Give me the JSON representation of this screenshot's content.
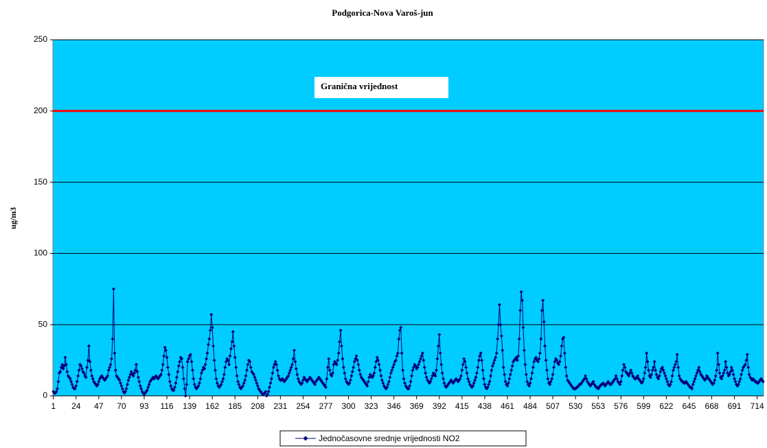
{
  "chart_data": {
    "type": "line",
    "title": "Podgorica-Nova Varoš-jun",
    "y_label": "ug/m3",
    "plot_background": "#00ccff",
    "grid": true,
    "ylim": [
      0,
      250
    ],
    "yticks": [
      0,
      50,
      100,
      150,
      200,
      250
    ],
    "threshold": {
      "value": 200,
      "color": "#ff0000",
      "label": "Granična vrijednost"
    },
    "categories": [
      1,
      null,
      null,
      null,
      null,
      null,
      null,
      null,
      null,
      null,
      null,
      null,
      null,
      null,
      null,
      null,
      null,
      null,
      null,
      null,
      null,
      null,
      null,
      24,
      null,
      null,
      null,
      null,
      null,
      null,
      null,
      null,
      null,
      null,
      null,
      null,
      null,
      null,
      null,
      null,
      null,
      null,
      null,
      null,
      null,
      null,
      47,
      null,
      null,
      null,
      null,
      null,
      null,
      null,
      null,
      null,
      null,
      null,
      null,
      null,
      null,
      null,
      null,
      null,
      null,
      null,
      null,
      null,
      null,
      70,
      null,
      null,
      null,
      null,
      null,
      null,
      null,
      null,
      null,
      null,
      null,
      null,
      null,
      null,
      null,
      null,
      null,
      null,
      null,
      null,
      null,
      null,
      93,
      null,
      null,
      null,
      null,
      null,
      null,
      null,
      null,
      null,
      null,
      null,
      null,
      null,
      null,
      null,
      null,
      null,
      null,
      null,
      null,
      null,
      null,
      116,
      null,
      null,
      null,
      null,
      null,
      null,
      null,
      null,
      null,
      null,
      null,
      null,
      null,
      null,
      null,
      null,
      null,
      null,
      null,
      null,
      null,
      null,
      139,
      null,
      null,
      null,
      null,
      null,
      null,
      null,
      null,
      null,
      null,
      null,
      null,
      null,
      null,
      null,
      null,
      null,
      null,
      null,
      null,
      null,
      null,
      162,
      null,
      null,
      null,
      null,
      null,
      null,
      null,
      null,
      null,
      null,
      null,
      null,
      null,
      null,
      null,
      null,
      null,
      null,
      null,
      null,
      null,
      null,
      185,
      null,
      null,
      null,
      null,
      null,
      null,
      null,
      null,
      null,
      null,
      null,
      null,
      null,
      null,
      null,
      null,
      null,
      null,
      null,
      null,
      null,
      null,
      208,
      null,
      null,
      null,
      null,
      null,
      null,
      null,
      null,
      null,
      null,
      null,
      null,
      null,
      null,
      null,
      null,
      null,
      null,
      null,
      null,
      null,
      null,
      231,
      null,
      null,
      null,
      null,
      null,
      null,
      null,
      null,
      null,
      null,
      null,
      null,
      null,
      null,
      null,
      null,
      null,
      null,
      null,
      null,
      null,
      null,
      254,
      null,
      null,
      null,
      null,
      null,
      null,
      null,
      null,
      null,
      null,
      null,
      null,
      null,
      null,
      null,
      null,
      null,
      null,
      null,
      null,
      null,
      null,
      277,
      null,
      null,
      null,
      null,
      null,
      null,
      null,
      null,
      null,
      null,
      null,
      null,
      null,
      null,
      null,
      null,
      null,
      null,
      null,
      null,
      null,
      null,
      300,
      null,
      null,
      null,
      null,
      null,
      null,
      null,
      null,
      null,
      null,
      null,
      null,
      null,
      null,
      null,
      null,
      null,
      null,
      null,
      null,
      null,
      null,
      323,
      null,
      null,
      null,
      null,
      null,
      null,
      null,
      null,
      null,
      null,
      null,
      null,
      null,
      null,
      null,
      null,
      null,
      null,
      null,
      null,
      null,
      null,
      346,
      null,
      null,
      null,
      null,
      null,
      null,
      null,
      null,
      null,
      null,
      null,
      null,
      null,
      null,
      null,
      null,
      null,
      null,
      null,
      null,
      null,
      null,
      369,
      null,
      null,
      null,
      null,
      null,
      null,
      null,
      null,
      null,
      null,
      null,
      null,
      null,
      null,
      null,
      null,
      null,
      null,
      null,
      null,
      null,
      null,
      392,
      null,
      null,
      null,
      null,
      null,
      null,
      null,
      null,
      null,
      null,
      null,
      null,
      null,
      null,
      null,
      null,
      null,
      null,
      null,
      null,
      null,
      null,
      415,
      null,
      null,
      null,
      null,
      null,
      null,
      null,
      null,
      null,
      null,
      null,
      null,
      null,
      null,
      null,
      null,
      null,
      null,
      null,
      null,
      null,
      null,
      438,
      null,
      null,
      null,
      null,
      null,
      null,
      null,
      null,
      null,
      null,
      null,
      null,
      null,
      null,
      null,
      null,
      null,
      null,
      null,
      null,
      null,
      null,
      461,
      null,
      null,
      null,
      null,
      null,
      null,
      null,
      null,
      null,
      null,
      null,
      null,
      null,
      null,
      null,
      null,
      null,
      null,
      null,
      null,
      null,
      null,
      484,
      null,
      null,
      null,
      null,
      null,
      null,
      null,
      null,
      null,
      null,
      null,
      null,
      null,
      null,
      null,
      null,
      null,
      null,
      null,
      null,
      null,
      null,
      507,
      null,
      null,
      null,
      null,
      null,
      null,
      null,
      null,
      null,
      null,
      null,
      null,
      null,
      null,
      null,
      null,
      null,
      null,
      null,
      null,
      null,
      null,
      530,
      null,
      null,
      null,
      null,
      null,
      null,
      null,
      null,
      null,
      null,
      null,
      null,
      null,
      null,
      null,
      null,
      null,
      null,
      null,
      null,
      null,
      null,
      553,
      null,
      null,
      null,
      null,
      null,
      null,
      null,
      null,
      null,
      null,
      null,
      null,
      null,
      null,
      null,
      null,
      null,
      null,
      null,
      null,
      null,
      null,
      576,
      null,
      null,
      null,
      null,
      null,
      null,
      null,
      null,
      null,
      null,
      null,
      null,
      null,
      null,
      null,
      null,
      null,
      null,
      null,
      null,
      null,
      null,
      599,
      null,
      null,
      null,
      null,
      null,
      null,
      null,
      null,
      null,
      null,
      null,
      null,
      null,
      null,
      null,
      null,
      null,
      null,
      null,
      null,
      null,
      null,
      622,
      null,
      null,
      null,
      null,
      null,
      null,
      null,
      null,
      null,
      null,
      null,
      null,
      null,
      null,
      null,
      null,
      null,
      null,
      null,
      null,
      null,
      null,
      645,
      null,
      null,
      null,
      null,
      null,
      null,
      null,
      null,
      null,
      null,
      null,
      null,
      null,
      null,
      null,
      null,
      null,
      null,
      null,
      null,
      null,
      null,
      668,
      null,
      null,
      null,
      null,
      null,
      null,
      null,
      null,
      null,
      null,
      null,
      null,
      null,
      null,
      null,
      null,
      null,
      null,
      null,
      null,
      null,
      null,
      691,
      null,
      null,
      null,
      null,
      null,
      null,
      null,
      null,
      null,
      null,
      null,
      null,
      null,
      null,
      null,
      null,
      null,
      null,
      null,
      null,
      null,
      null,
      714,
      null,
      null,
      null,
      null,
      null,
      null
    ],
    "series": [
      {
        "name": "Jednočasovne srednje vrijednosti NO2",
        "color": "#000080",
        "values": [
          3,
          2,
          2,
          3,
          5,
          10,
          16,
          17,
          20,
          22,
          19,
          21,
          27,
          22,
          17,
          14,
          13,
          12,
          10,
          8,
          6,
          5,
          5,
          7,
          10,
          14,
          18,
          22,
          21,
          19,
          17,
          16,
          14,
          13,
          20,
          25,
          35,
          24,
          18,
          14,
          12,
          10,
          9,
          8,
          7,
          8,
          10,
          12,
          13,
          14,
          13,
          12,
          11,
          12,
          13,
          14,
          18,
          20,
          22,
          26,
          40,
          75,
          30,
          18,
          14,
          13,
          12,
          11,
          9,
          7,
          5,
          3,
          2,
          3,
          5,
          8,
          11,
          13,
          15,
          17,
          15,
          14,
          16,
          18,
          22,
          17,
          13,
          10,
          7,
          5,
          3,
          2,
          1,
          2,
          3,
          4,
          6,
          8,
          10,
          11,
          12,
          13,
          12,
          13,
          14,
          13,
          12,
          13,
          14,
          15,
          18,
          22,
          28,
          34,
          32,
          27,
          20,
          15,
          10,
          7,
          5,
          4,
          4,
          6,
          9,
          13,
          17,
          21,
          24,
          27,
          26,
          20,
          12,
          5,
          0,
          8,
          24,
          26,
          28,
          29,
          24,
          18,
          12,
          8,
          6,
          5,
          6,
          7,
          9,
          12,
          16,
          18,
          20,
          19,
          22,
          26,
          30,
          36,
          40,
          46,
          57,
          48,
          35,
          25,
          18,
          12,
          9,
          7,
          6,
          7,
          8,
          10,
          12,
          15,
          20,
          24,
          26,
          25,
          22,
          28,
          33,
          38,
          45,
          35,
          27,
          20,
          14,
          10,
          8,
          6,
          5,
          6,
          7,
          9,
          11,
          14,
          18,
          22,
          25,
          24,
          20,
          17,
          16,
          15,
          13,
          11,
          9,
          7,
          5,
          4,
          3,
          2,
          1,
          1,
          2,
          3,
          0,
          1,
          3,
          6,
          9,
          12,
          16,
          20,
          22,
          24,
          22,
          18,
          14,
          12,
          11,
          11,
          12,
          11,
          10,
          11,
          12,
          13,
          14,
          16,
          18,
          20,
          22,
          26,
          32,
          24,
          19,
          15,
          12,
          10,
          9,
          8,
          9,
          11,
          13,
          12,
          11,
          10,
          11,
          12,
          13,
          12,
          11,
          10,
          9,
          8,
          10,
          11,
          12,
          13,
          12,
          11,
          10,
          9,
          8,
          7,
          6,
          12,
          20,
          26,
          18,
          15,
          14,
          16,
          22,
          24,
          23,
          22,
          25,
          30,
          38,
          46,
          35,
          26,
          20,
          16,
          12,
          10,
          9,
          8,
          9,
          11,
          14,
          17,
          20,
          24,
          26,
          28,
          25,
          22,
          18,
          15,
          13,
          12,
          11,
          10,
          9,
          8,
          7,
          10,
          13,
          15,
          14,
          13,
          14,
          16,
          20,
          24,
          27,
          25,
          22,
          18,
          14,
          11,
          9,
          7,
          6,
          5,
          6,
          8,
          10,
          13,
          16,
          18,
          20,
          22,
          24,
          25,
          28,
          30,
          40,
          46,
          48,
          30,
          18,
          12,
          9,
          7,
          6,
          5,
          5,
          7,
          10,
          14,
          18,
          20,
          22,
          21,
          19,
          20,
          22,
          24,
          26,
          28,
          30,
          25,
          20,
          16,
          13,
          11,
          10,
          9,
          10,
          12,
          14,
          16,
          15,
          14,
          18,
          26,
          35,
          43,
          30,
          22,
          16,
          12,
          9,
          7,
          6,
          7,
          8,
          9,
          10,
          11,
          10,
          9,
          10,
          11,
          12,
          11,
          10,
          11,
          12,
          14,
          18,
          22,
          26,
          24,
          20,
          16,
          12,
          10,
          8,
          7,
          6,
          7,
          9,
          11,
          13,
          16,
          20,
          25,
          28,
          30,
          25,
          18,
          12,
          8,
          6,
          5,
          6,
          8,
          10,
          14,
          18,
          21,
          23,
          25,
          27,
          30,
          40,
          50,
          64,
          50,
          42,
          32,
          20,
          15,
          10,
          8,
          7,
          9,
          12,
          15,
          18,
          21,
          24,
          25,
          26,
          27,
          25,
          28,
          40,
          60,
          73,
          67,
          48,
          32,
          22,
          15,
          10,
          8,
          7,
          9,
          12,
          16,
          20,
          24,
          26,
          27,
          25,
          24,
          26,
          30,
          40,
          60,
          67,
          52,
          35,
          25,
          18,
          12,
          9,
          8,
          10,
          12,
          15,
          20,
          24,
          26,
          25,
          23,
          22,
          24,
          28,
          35,
          40,
          41,
          30,
          20,
          14,
          11,
          10,
          9,
          8,
          7,
          6,
          5,
          5,
          5,
          6,
          6,
          7,
          8,
          8,
          9,
          10,
          11,
          12,
          14,
          12,
          10,
          9,
          8,
          7,
          8,
          9,
          10,
          8,
          7,
          6,
          6,
          5,
          6,
          7,
          8,
          8,
          9,
          8,
          7,
          8,
          9,
          10,
          9,
          8,
          8,
          9,
          10,
          11,
          12,
          14,
          12,
          10,
          9,
          8,
          10,
          14,
          18,
          22,
          20,
          17,
          16,
          15,
          14,
          16,
          18,
          16,
          14,
          13,
          12,
          12,
          13,
          14,
          12,
          11,
          10,
          9,
          10,
          12,
          16,
          20,
          30,
          24,
          18,
          14,
          13,
          15,
          18,
          20,
          24,
          18,
          15,
          13,
          12,
          14,
          17,
          19,
          20,
          18,
          16,
          14,
          12,
          10,
          8,
          7,
          8,
          10,
          14,
          18,
          20,
          22,
          24,
          29,
          20,
          14,
          12,
          11,
          10,
          10,
          9,
          9,
          10,
          9,
          8,
          7,
          6,
          6,
          5,
          8,
          10,
          12,
          14,
          16,
          18,
          20,
          17,
          15,
          14,
          13,
          12,
          11,
          12,
          14,
          13,
          12,
          11,
          10,
          9,
          8,
          9,
          11,
          14,
          18,
          30,
          22,
          16,
          13,
          12,
          14,
          16,
          18,
          24,
          20,
          16,
          14,
          15,
          17,
          20,
          18,
          15,
          12,
          10,
          8,
          7,
          8,
          10,
          12,
          15,
          18,
          20,
          21,
          22,
          25,
          29,
          20,
          15,
          13,
          12,
          11,
          12,
          11,
          10,
          10,
          9,
          9,
          10,
          11,
          12,
          11,
          10
        ]
      }
    ]
  }
}
